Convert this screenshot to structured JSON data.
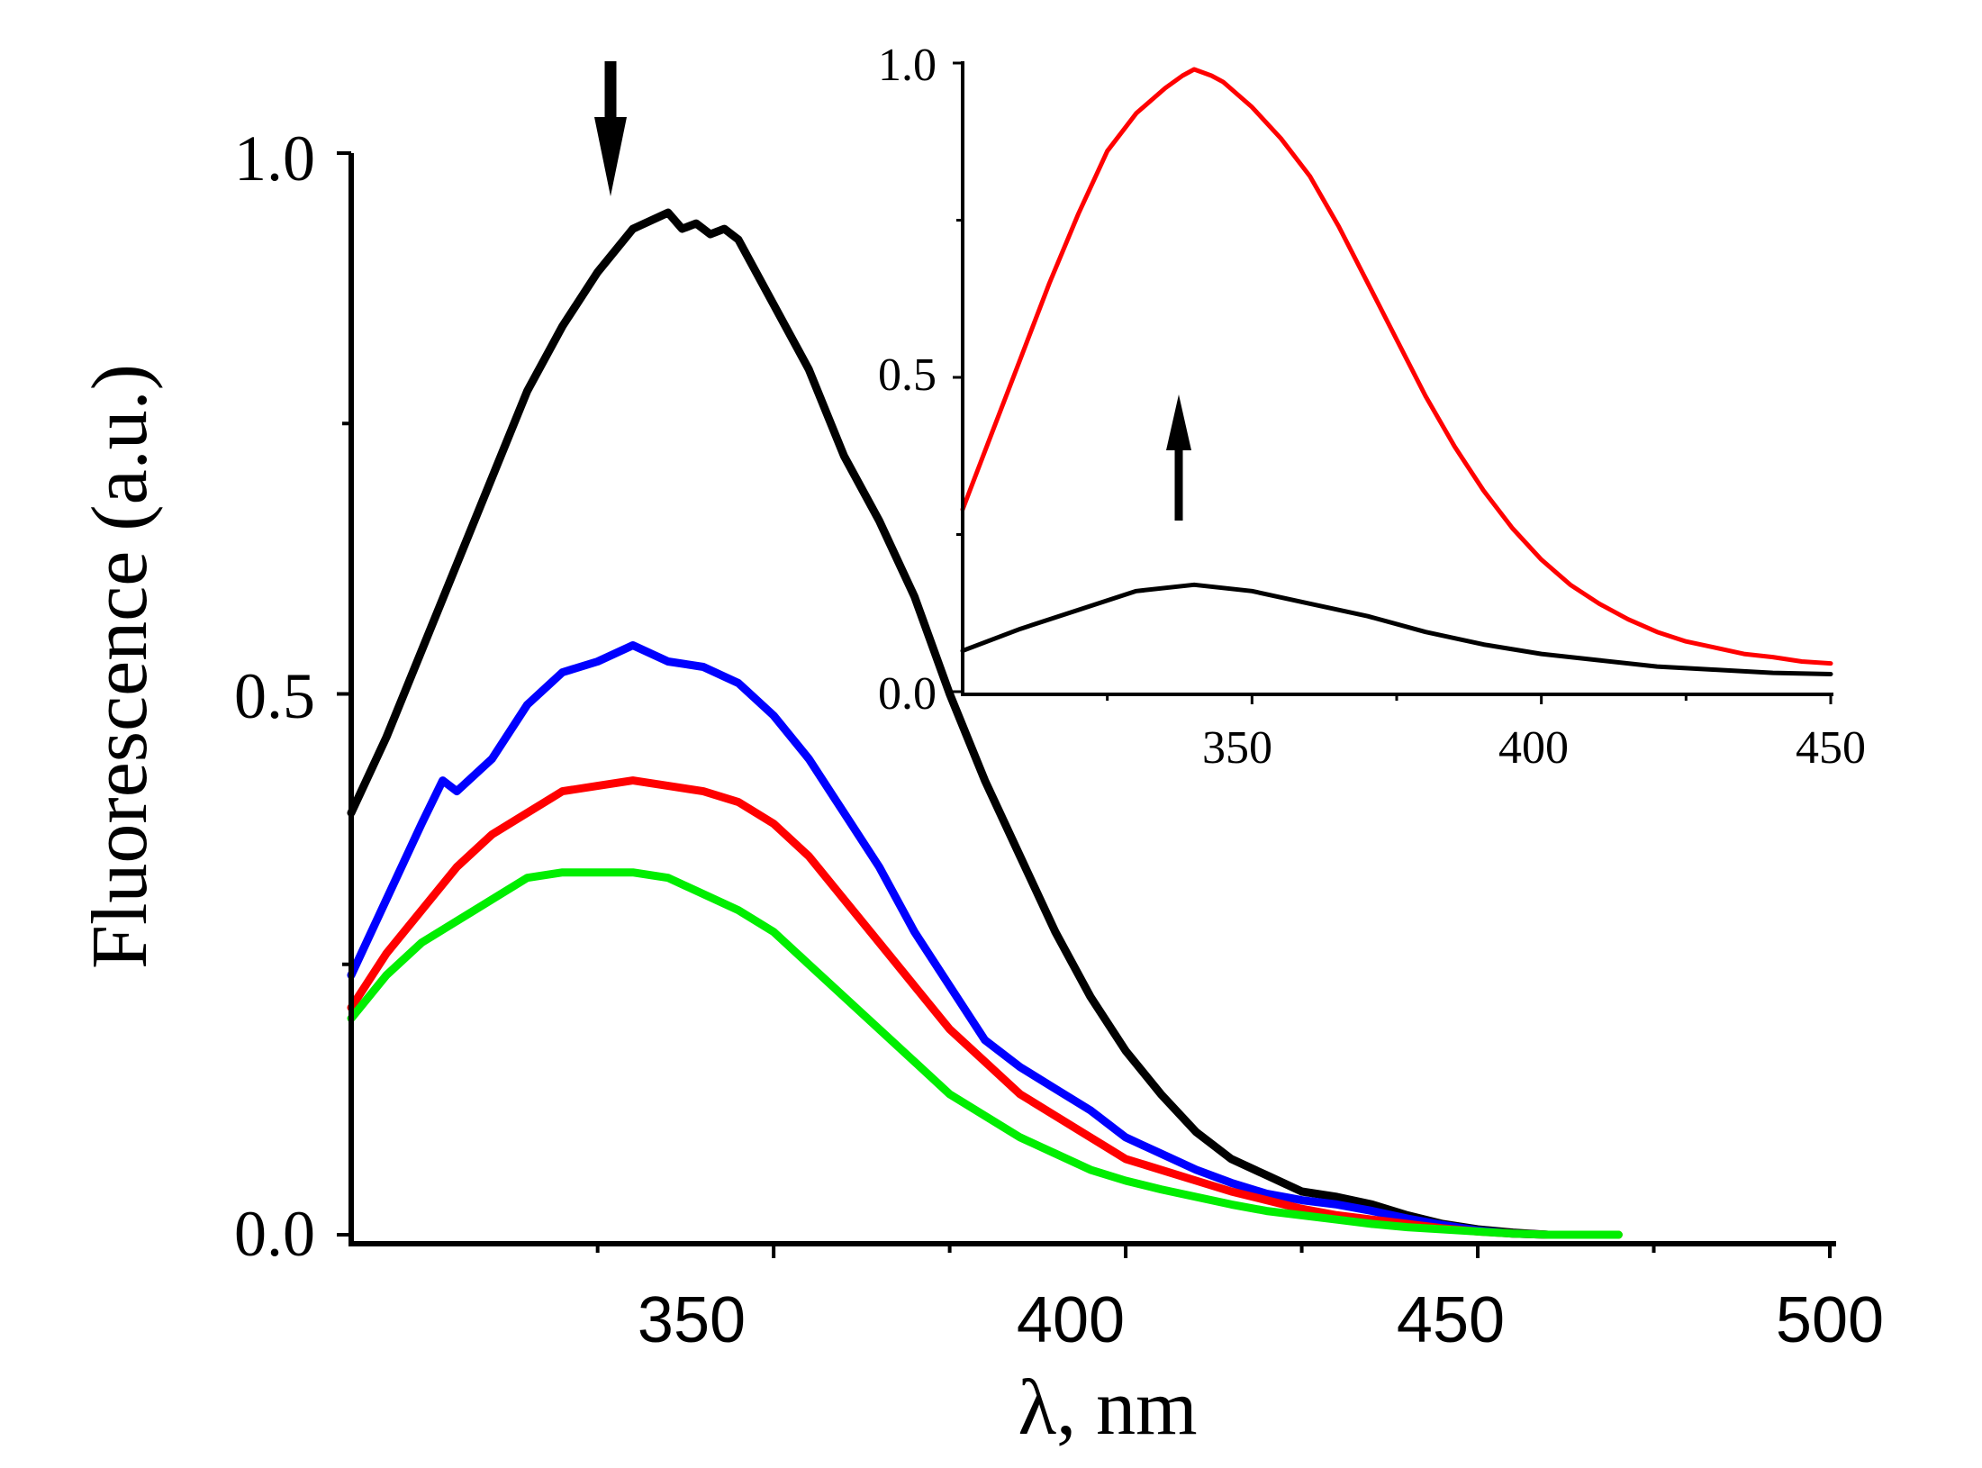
{
  "chart_data": [
    {
      "name": "main",
      "type": "line",
      "title": "",
      "xlabel": "λ, nm",
      "ylabel": "Fluorescence (a.u.)",
      "xlim": [
        290,
        500
      ],
      "ylim": [
        0.0,
        1.0
      ],
      "xticks": [
        350,
        400,
        450,
        500
      ],
      "xtick_labels": [
        "350",
        "400",
        "450",
        "500"
      ],
      "yticks": [
        0.0,
        0.5,
        1.0
      ],
      "ytick_labels": [
        "0.0",
        "0.5",
        "1.0"
      ],
      "grid": false,
      "annotation": "downward arrow at ~339 nm above the peak (decreasing fluorescence)",
      "series": [
        {
          "name": "black",
          "color": "#000000",
          "x": [
            290,
            295,
            300,
            305,
            310,
            315,
            320,
            325,
            330,
            335,
            337,
            339,
            341,
            343,
            345,
            350,
            355,
            360,
            365,
            370,
            375,
            380,
            385,
            390,
            395,
            400,
            405,
            410,
            415,
            420,
            425,
            430,
            435,
            440,
            445,
            450,
            455,
            460
          ],
          "values": [
            0.39,
            0.46,
            0.54,
            0.62,
            0.7,
            0.78,
            0.84,
            0.89,
            0.93,
            0.945,
            0.93,
            0.935,
            0.925,
            0.93,
            0.92,
            0.86,
            0.8,
            0.72,
            0.66,
            0.59,
            0.5,
            0.42,
            0.35,
            0.28,
            0.22,
            0.17,
            0.13,
            0.095,
            0.07,
            0.055,
            0.04,
            0.035,
            0.028,
            0.018,
            0.01,
            0.005,
            0.002,
            0.0
          ]
        },
        {
          "name": "blue",
          "color": "#0000ff",
          "x": [
            290,
            295,
            300,
            303,
            305,
            310,
            315,
            320,
            325,
            330,
            335,
            340,
            345,
            350,
            355,
            360,
            365,
            370,
            375,
            380,
            385,
            390,
            395,
            400,
            405,
            410,
            415,
            420,
            425,
            430,
            435,
            440,
            445,
            450,
            455,
            460
          ],
          "values": [
            0.24,
            0.31,
            0.38,
            0.42,
            0.41,
            0.44,
            0.49,
            0.52,
            0.53,
            0.545,
            0.53,
            0.525,
            0.51,
            0.48,
            0.44,
            0.39,
            0.34,
            0.28,
            0.23,
            0.18,
            0.155,
            0.135,
            0.115,
            0.09,
            0.075,
            0.06,
            0.048,
            0.038,
            0.032,
            0.028,
            0.022,
            0.015,
            0.009,
            0.004,
            0.001,
            0.0
          ]
        },
        {
          "name": "red",
          "color": "#ff0000",
          "x": [
            290,
            295,
            300,
            305,
            310,
            315,
            320,
            325,
            330,
            335,
            340,
            345,
            350,
            355,
            360,
            365,
            370,
            375,
            380,
            385,
            390,
            395,
            400,
            405,
            410,
            415,
            420,
            425,
            430,
            435,
            440,
            445,
            450,
            455,
            460,
            470
          ],
          "values": [
            0.21,
            0.26,
            0.3,
            0.34,
            0.37,
            0.39,
            0.41,
            0.415,
            0.42,
            0.415,
            0.41,
            0.4,
            0.38,
            0.35,
            0.31,
            0.27,
            0.23,
            0.19,
            0.16,
            0.13,
            0.11,
            0.09,
            0.07,
            0.06,
            0.05,
            0.04,
            0.032,
            0.024,
            0.018,
            0.014,
            0.01,
            0.006,
            0.003,
            0.001,
            0.0,
            0.0
          ]
        },
        {
          "name": "green",
          "color": "#00ee00",
          "x": [
            290,
            295,
            300,
            305,
            310,
            315,
            320,
            325,
            330,
            335,
            340,
            345,
            350,
            355,
            360,
            365,
            370,
            375,
            380,
            385,
            390,
            395,
            400,
            405,
            410,
            415,
            420,
            425,
            430,
            435,
            440,
            445,
            450,
            455,
            460,
            470
          ],
          "values": [
            0.2,
            0.24,
            0.27,
            0.29,
            0.31,
            0.33,
            0.335,
            0.335,
            0.335,
            0.33,
            0.315,
            0.3,
            0.28,
            0.25,
            0.22,
            0.19,
            0.16,
            0.13,
            0.11,
            0.09,
            0.075,
            0.06,
            0.05,
            0.042,
            0.035,
            0.028,
            0.022,
            0.018,
            0.014,
            0.01,
            0.007,
            0.005,
            0.003,
            0.001,
            0.0,
            0.0
          ]
        }
      ]
    },
    {
      "name": "inset",
      "type": "line",
      "title": "",
      "xlabel": "",
      "ylabel": "",
      "xlim": [
        300,
        450
      ],
      "ylim": [
        0.0,
        1.0
      ],
      "xticks": [
        350,
        400,
        450
      ],
      "xtick_labels": [
        "350",
        "400",
        "450"
      ],
      "yticks": [
        0.0,
        0.5,
        1.0
      ],
      "ytick_labels": [
        "0.0",
        "0.5",
        "1.0"
      ],
      "grid": false,
      "annotation": "upward arrow at ~337 nm (increasing fluorescence)",
      "series": [
        {
          "name": "red",
          "color": "#ff0000",
          "x": [
            300,
            305,
            310,
            315,
            320,
            325,
            330,
            335,
            338,
            340,
            343,
            345,
            350,
            355,
            360,
            365,
            370,
            375,
            380,
            385,
            390,
            395,
            400,
            405,
            410,
            415,
            420,
            425,
            430,
            435,
            440,
            445,
            450
          ],
          "values": [
            0.29,
            0.41,
            0.53,
            0.65,
            0.76,
            0.86,
            0.92,
            0.96,
            0.98,
            0.99,
            0.98,
            0.97,
            0.93,
            0.88,
            0.82,
            0.74,
            0.65,
            0.56,
            0.47,
            0.39,
            0.32,
            0.26,
            0.21,
            0.17,
            0.14,
            0.115,
            0.095,
            0.08,
            0.07,
            0.06,
            0.055,
            0.048,
            0.045
          ]
        },
        {
          "name": "black",
          "color": "#000000",
          "x": [
            300,
            310,
            320,
            330,
            340,
            345,
            350,
            360,
            370,
            380,
            390,
            400,
            410,
            420,
            430,
            440,
            450
          ],
          "values": [
            0.065,
            0.1,
            0.13,
            0.16,
            0.17,
            0.165,
            0.16,
            0.14,
            0.12,
            0.095,
            0.075,
            0.06,
            0.05,
            0.04,
            0.035,
            0.03,
            0.028
          ]
        }
      ]
    }
  ]
}
